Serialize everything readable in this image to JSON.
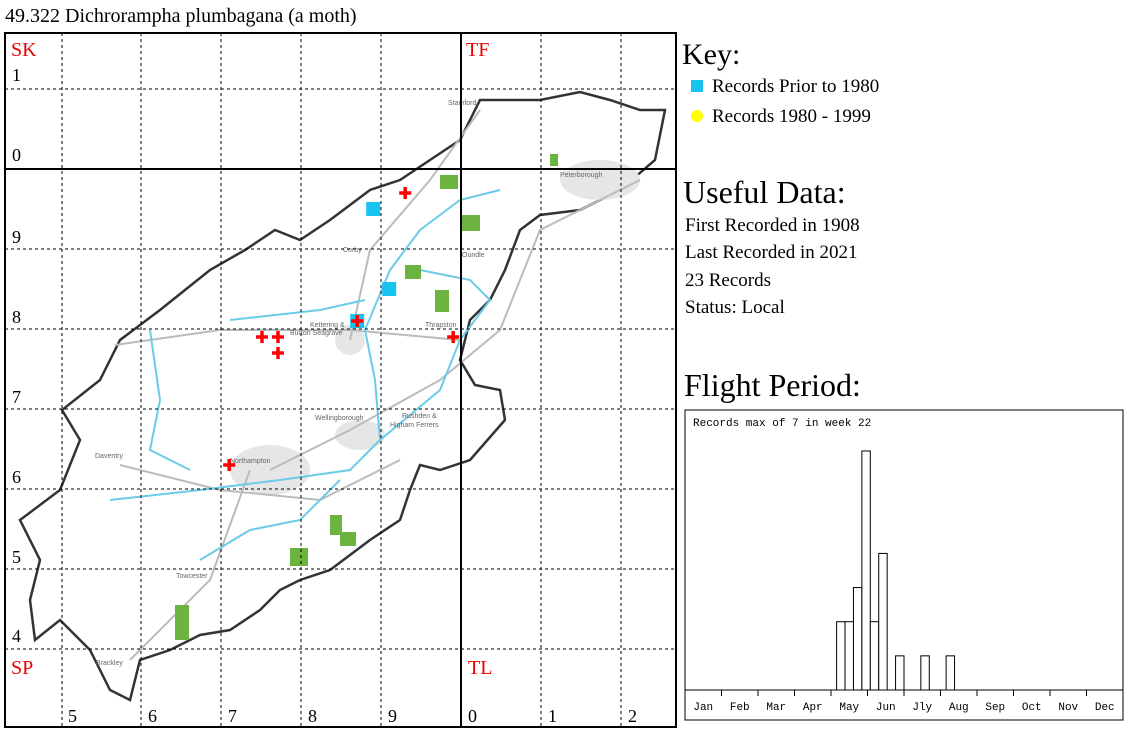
{
  "title": "49.322 Dichrorampha plumbagana (a moth)",
  "map": {
    "squares": [
      "SK",
      "TF",
      "SP",
      "TL"
    ],
    "eastings": [
      "5",
      "6",
      "7",
      "8",
      "9",
      "0",
      "1",
      "2"
    ],
    "northings": [
      "1",
      "0",
      "9",
      "8",
      "7",
      "6",
      "5",
      "4"
    ],
    "towns": [
      "Stamford",
      "Peterborough",
      "Corby",
      "Oundle",
      "Kettering &",
      "Burton Seagrave",
      "Thrapston",
      "Wellingborough",
      "Rushden &",
      "Higham Ferrers",
      "Daventry",
      "Northampton",
      "Towcester",
      "Brackley"
    ],
    "records": [
      {
        "marker": "square",
        "color": "#19c3f0",
        "easting": [
          488.9,
          490.9,
          486.9
        ],
        "northing": [
          295,
          285,
          281
        ]
      },
      {
        "marker": "cross",
        "color": "#ff0000",
        "easting": [
          492.9,
          475,
          477,
          477,
          486.9,
          498.9,
          470.9
        ],
        "northing": [
          297,
          279,
          279,
          277,
          281,
          279,
          263
        ]
      }
    ]
  },
  "key": {
    "heading": "Key:",
    "items": [
      {
        "label": "Records Prior to 1980",
        "color": "#19c3f0",
        "shape": "square"
      },
      {
        "label": "Records 1980 - 1999",
        "color": "#ffff00",
        "shape": "circle"
      }
    ]
  },
  "useful": {
    "heading": "Useful Data:",
    "lines": [
      "First Recorded in 1908",
      "Last Recorded in 2021",
      "23 Records",
      "Status: Local"
    ]
  },
  "chart_data": {
    "type": "bar",
    "title": "Flight Period:",
    "note": "Records max of 7 in week 22",
    "categories": [
      "Jan",
      "Feb",
      "Mar",
      "Apr",
      "May",
      "Jun",
      "Jly",
      "Aug",
      "Sep",
      "Oct",
      "Nov",
      "Dec"
    ],
    "x": [
      19,
      20,
      21,
      22,
      23,
      24,
      26,
      29,
      32
    ],
    "values": [
      2,
      2,
      3,
      7,
      2,
      4,
      1,
      1,
      1
    ],
    "xlim": [
      0,
      52
    ],
    "ylim": [
      0,
      8.2
    ],
    "color": "#ffffff"
  }
}
